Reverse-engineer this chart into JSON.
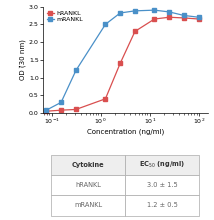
{
  "hRANKL_x": [
    0.078,
    0.156,
    0.313,
    1.25,
    2.5,
    5.0,
    12.5,
    25.0,
    50.0,
    100.0
  ],
  "hRANKL_y": [
    0.05,
    0.08,
    0.1,
    0.4,
    1.4,
    2.3,
    2.65,
    2.7,
    2.68,
    2.65
  ],
  "mRANKL_x": [
    0.078,
    0.156,
    0.313,
    1.25,
    2.5,
    5.0,
    12.5,
    25.0,
    50.0,
    100.0
  ],
  "mRANKL_y": [
    0.08,
    0.3,
    1.2,
    2.5,
    2.82,
    2.88,
    2.9,
    2.85,
    2.75,
    2.7
  ],
  "hRANKL_color": "#d94f4f",
  "mRANKL_color": "#4a90c8",
  "ylabel": "OD (̆30 nm)",
  "xlabel": "Concentration (ng/ml)",
  "ylim": [
    0.0,
    3.0
  ],
  "yticks": [
    0.0,
    0.5,
    1.0,
    1.5,
    2.0,
    2.5,
    3.0
  ],
  "legend_labels": [
    "hRANKL",
    "mRANKL"
  ],
  "table_cytokines": [
    "hRANKL",
    "mRANKL"
  ],
  "table_ec50": [
    "3.0 ± 1.5",
    "1.2 ± 0.5"
  ],
  "table_header_cytokine": "Cytokine",
  "table_header_ec50": "EC$_{50}$ (ng/ml)"
}
